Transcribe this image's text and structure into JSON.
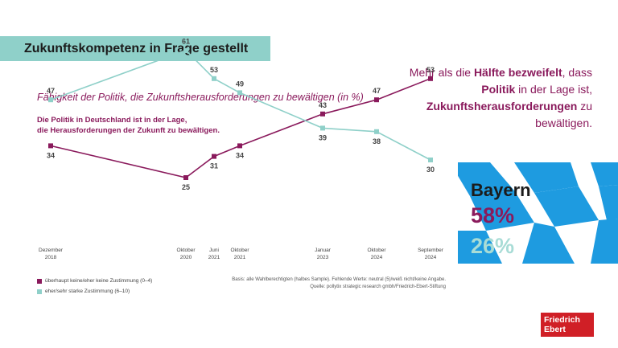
{
  "title": "Zukunftskompetenz in Frage gestellt",
  "headline": {
    "p1": "Mehr als die ",
    "b1": "Hälfte bezweifelt",
    "p2": ", dass ",
    "b2": "Politik",
    "p3": " in der Lage ist, ",
    "b3": "Zukunftsherausforderungen",
    "p4": " zu bewältigen."
  },
  "subtitle": "Fähigkeit der Politik, die Zukunftsherausforderungen zu bewältigen (in %)",
  "question": {
    "line1": "Die Politik in Deutschland ist in der Lage,",
    "line2": "die Herausforderungen der Zukunft zu bewältigen."
  },
  "legend": {
    "item1": "überhaupt keine/eher keine Zustimmung (0–4)",
    "item2": "eher/sehr starke Zustimmung (6–10)"
  },
  "source": {
    "line1": "Basis: alle Wahlberechtigten (halbes Sample). Fehlende Werte: neutral (5)/weiß nicht/keine Angabe.",
    "line2": "Quelle: pollytix strategic research gmbh/Friedrich-Ebert-Stiftung"
  },
  "bayern": {
    "label": "Bayern",
    "value1": "58%",
    "value2": "26%"
  },
  "logo": {
    "line1": "Friedrich",
    "line2": "Ebert"
  },
  "colors": {
    "series1": "#8a1a5c",
    "series2": "#8fd0c9",
    "bayern_blue": "#1e9be0"
  },
  "chart_data": {
    "type": "line",
    "title": "Fähigkeit der Politik, die Zukunftsherausforderungen zu bewältigen (in %)",
    "xlabel": "",
    "ylabel": "",
    "ylim": [
      0,
      100
    ],
    "categories": [
      [
        "Dezember",
        "2018"
      ],
      [
        "Oktober",
        "2020"
      ],
      [
        "Juni",
        "2021"
      ],
      [
        "Oktober",
        "2021"
      ],
      [
        "Januar",
        "2023"
      ],
      [
        "Oktober",
        "2024"
      ],
      [
        "September",
        "2024"
      ]
    ],
    "series": [
      {
        "name": "überhaupt keine/eher keine Zustimmung (0–4)",
        "values": [
          34,
          25,
          31,
          34,
          43,
          47,
          53
        ]
      },
      {
        "name": "eher/sehr starke Zustimmung (6–10)",
        "values": [
          47,
          61,
          53,
          49,
          39,
          38,
          30
        ]
      }
    ]
  }
}
